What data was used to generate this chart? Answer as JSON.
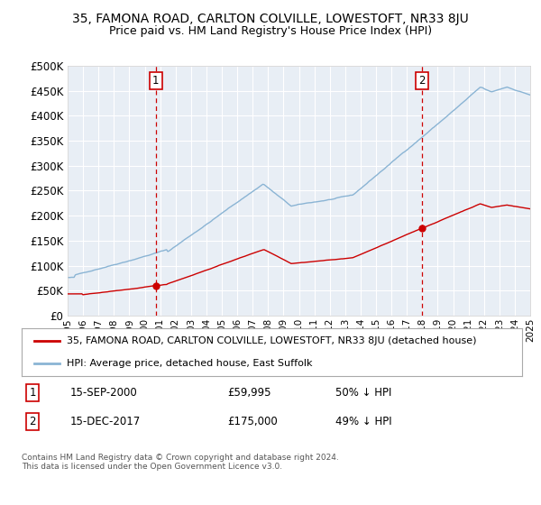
{
  "title": "35, FAMONA ROAD, CARLTON COLVILLE, LOWESTOFT, NR33 8JU",
  "subtitle": "Price paid vs. HM Land Registry's House Price Index (HPI)",
  "plot_bg_color": "#e8eef5",
  "hpi_color": "#8ab4d4",
  "price_color": "#cc0000",
  "vline_color": "#cc0000",
  "sale1_date": 2000.71,
  "sale1_price": 59995,
  "sale2_date": 2017.96,
  "sale2_price": 175000,
  "legend_red": "35, FAMONA ROAD, CARLTON COLVILLE, LOWESTOFT, NR33 8JU (detached house)",
  "legend_blue": "HPI: Average price, detached house, East Suffolk",
  "note1_label": "1",
  "note1_date": "15-SEP-2000",
  "note1_price": "£59,995",
  "note1_hpi": "50% ↓ HPI",
  "note2_label": "2",
  "note2_date": "15-DEC-2017",
  "note2_price": "£175,000",
  "note2_hpi": "49% ↓ HPI",
  "copyright": "Contains HM Land Registry data © Crown copyright and database right 2024.\nThis data is licensed under the Open Government Licence v3.0.",
  "ylim": [
    0,
    500000
  ],
  "yticks": [
    0,
    50000,
    100000,
    150000,
    200000,
    250000,
    300000,
    350000,
    400000,
    450000,
    500000
  ],
  "xstart": 1995,
  "xend": 2025
}
